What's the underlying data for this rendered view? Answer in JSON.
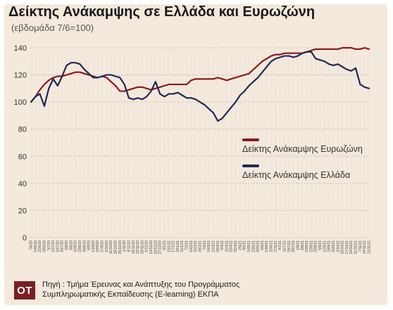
{
  "chart_data": {
    "type": "line",
    "title": "Δείκτης Ανάκαμψης σε Ελλάδα και Ευρωζώνη",
    "subtitle": "(εβδομάδα 7/6=100)",
    "ylim": [
      0,
      140
    ],
    "yticks": [
      0,
      20,
      40,
      60,
      80,
      100,
      120,
      140
    ],
    "grid": true,
    "legend_position": "right",
    "x": [
      "7/6/20",
      "14/6/20",
      "21/6/20",
      "28/6/20",
      "5/7/20",
      "12/7/20",
      "19/7/20",
      "26/7/20",
      "2/8/20",
      "9/8/20",
      "16/8/20",
      "23/8/20",
      "30/8/20",
      "6/9/20",
      "13/9/20",
      "20/9/20",
      "27/9/20",
      "4/10/20",
      "11/10/20",
      "18/10/20",
      "25/10/20",
      "1/11/20",
      "8/11/20",
      "15/11/20",
      "22/11/20",
      "29/11/20",
      "6/12/20",
      "13/12/20",
      "20/12/20",
      "27/12/20",
      "3/1/21",
      "10/1/21",
      "17/1/21",
      "24/1/21",
      "31/1/21",
      "7/2/21",
      "14/2/21",
      "21/2/21",
      "28/2/21",
      "7/3/21",
      "14/3/21",
      "21/3/21",
      "28/3/21",
      "4/4/21",
      "11/4/21",
      "18/4/21",
      "25/4/21",
      "2/5/21",
      "9/5/21",
      "16/5/21",
      "23/5/21",
      "30/5/21",
      "6/6/21",
      "13/6/21",
      "20/6/21",
      "27/6/21",
      "4/7/21",
      "11/7/21",
      "18/7/21",
      "25/7/21",
      "1/8/21",
      "8/8/21",
      "15/8/21",
      "22/8/21",
      "29/8/21",
      "5/9/21",
      "12/9/21",
      "19/9/21",
      "26/9/21",
      "3/10/21",
      "10/10/21",
      "17/10/21",
      "24/10/21",
      "31/10/21",
      "7/11/21",
      "14/11/21",
      "21/11/21"
    ],
    "series": [
      {
        "name": "Δείκτης Ανάκαμψης Ευρωζώνη",
        "color": "#8b1a1e",
        "values": [
          100,
          104,
          109,
          113,
          116,
          118,
          119,
          119,
          120,
          121,
          122,
          122,
          121,
          120,
          119,
          118,
          119,
          118,
          115,
          112,
          108,
          108,
          109,
          110,
          111,
          111,
          110,
          109,
          110,
          111,
          112,
          113,
          113,
          113,
          113,
          113,
          116,
          117,
          117,
          117,
          117,
          117,
          118,
          117,
          116,
          117,
          118,
          119,
          120,
          121,
          124,
          127,
          130,
          132,
          134,
          135,
          135,
          136,
          136,
          136,
          136,
          136,
          137,
          138,
          139,
          139,
          139,
          139,
          139,
          139,
          140,
          140,
          140,
          139,
          139,
          140,
          139
        ]
      },
      {
        "name": "Δείκτης Ανάκαμψης Ελλάδα",
        "color": "#20285a",
        "values": [
          100,
          104,
          106,
          97,
          110,
          117,
          112,
          119,
          127,
          129,
          129,
          128,
          124,
          121,
          118,
          118,
          119,
          120,
          120,
          119,
          118,
          113,
          103,
          102,
          103,
          102,
          104,
          108,
          115,
          106,
          104,
          106,
          106,
          107,
          105,
          103,
          103,
          102,
          100,
          98,
          95,
          92,
          86,
          88,
          92,
          96,
          100,
          105,
          108,
          112,
          115,
          118,
          122,
          126,
          130,
          132,
          133,
          134,
          134,
          133,
          134,
          136,
          137,
          137,
          132,
          131,
          130,
          128,
          127,
          128,
          126,
          124,
          123,
          125,
          113,
          111,
          110
        ]
      }
    ]
  },
  "footer": {
    "logo_text": "ΟΤ",
    "source_line1": "Πηγή : Τμήμα Έρευνας και Ανάπτυξης του Προγράμματος",
    "source_line2": "Συμπληρωματικής Εκπαίδευσης (E-learning) ΕΚΠΑ"
  }
}
